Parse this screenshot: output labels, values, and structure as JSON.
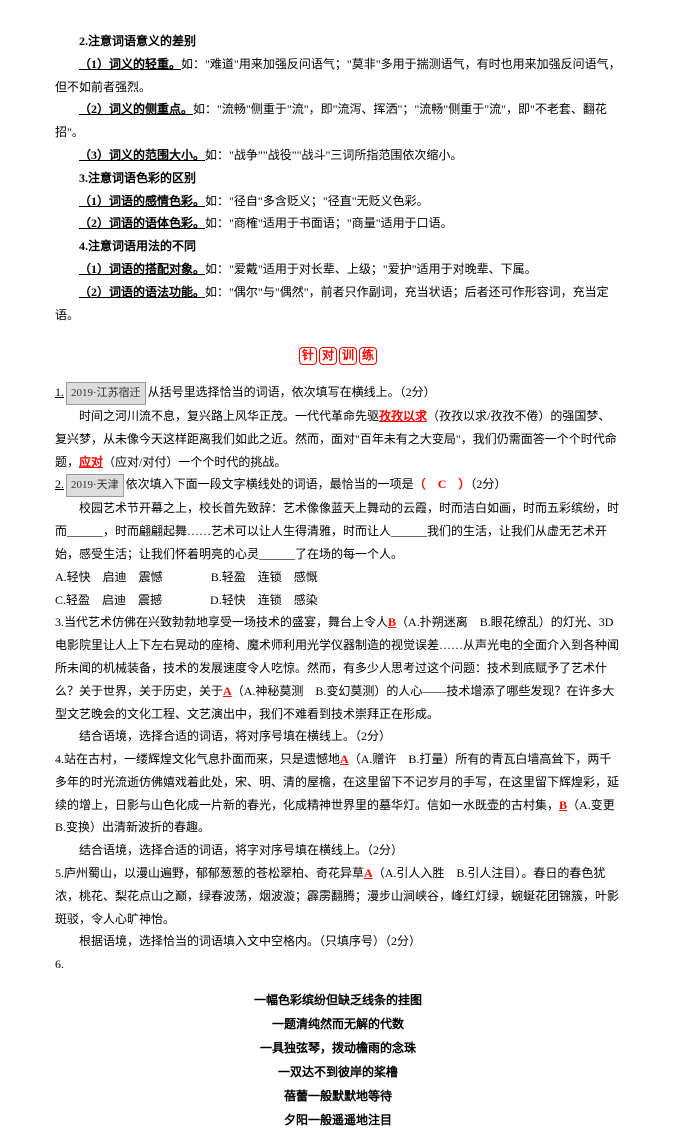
{
  "h2": "2.注意词语意义的差别",
  "p1_lead": "（1）词义的轻重。",
  "p1_rest": "如：\"难道\"用来加强反问语气；\"莫非\"多用于揣测语气，有时也用来加强反问语气，但不如前者强烈。",
  "p2_lead": "（2）词义的侧重点。",
  "p2_rest": "如：\"流畅\"侧重于\"流\"，即\"流泻、挥洒\"；\"流畅\"侧重于\"流\"，即\"不老套、翻花招\"。",
  "p3_lead": "（3）词义的范围大小。",
  "p3_rest": "如：\"战争\"\"战役\"\"战斗\"三词所指范围依次缩小。",
  "h3": "3.注意词语色彩的区别",
  "p4_lead": "（1）词语的感情色彩。",
  "p4_rest": "如：\"径自\"多含贬义；\"径直\"无贬义色彩。",
  "p5_lead": "（2）词语的语体色彩。",
  "p5_rest": "如：\"商榷\"适用于书面语；\"商量\"适用于口语。",
  "h4": "4.注意词语用法的不同",
  "p6_lead": "（1）词语的搭配对象。",
  "p6_rest": "如：\"爱戴\"适用于对长辈、上级；\"爱护\"适用于对晚辈、下属。",
  "p7_lead": "（2）词语的语法功能。",
  "p7_rest": "如：\"偶尔\"与\"偶然\"，前者只作副词，充当状语；后者还可作形容词，充当定语。",
  "practice": [
    "针",
    "对",
    "训",
    "练"
  ],
  "q1": {
    "num": "1.",
    "tag": "2019·江苏宿迁",
    "prompt": "从括号里选择恰当的词语，依次填写在横线上。（2分）",
    "body_a": "时间之河川流不息，复兴路上风华正茂。一代代革命先驱",
    "ans1": "孜孜以求",
    "body_b": "（孜孜以求/孜孜不倦）的强国梦、复兴梦，从未像今天这样距离我们如此之近。然而，面对\"百年未有之大变局\"，我们仍需面答一个个时代命题，",
    "ans2": "应对",
    "body_c": "（应对/对付）一个个时代的挑战。"
  },
  "q2": {
    "num": "2.",
    "tag": "2019·天津",
    "prompt": "依次填入下面一段文字横线处的词语，最恰当的一项是",
    "ans": "（　C　）",
    "score": "（2分）",
    "body": "校园艺术节开幕之上，校长首先致辞：艺术像像蓝天上舞动的云霞，时而洁白如画，时而五彩缤纷，时而______，时而翩翩起舞……艺术可以让人生得清雅，时而让人______我们的生活，让我们从虚无艺术开始，感受生活；让我们怀着明亮的心灵______了在场的每一个人。",
    "optA": "A.轻快　启迪　震憾",
    "optB": "B.轻盈　连锁　感慨",
    "optC": "C.轻盈　启迪　震撼",
    "optD": "D.轻快　连锁　感染"
  },
  "q3": {
    "pre": "3.当代艺术仿佛在兴致勃勃地享受一场技术的盛宴，舞台上令人",
    "ans1": "B",
    "mid1": "（A.扑朔迷离　B.眼花缭乱）的灯光、3D电影院里让人上下左右晃动的座椅、魔术师利用光学仪器制造的视觉误差……从声光电的全面介入到各种闻所未闻的机械装备，技术的发展速度令人吃惊。然而，有多少人思考过这个问题：技术到底赋予了艺术什么？关于世界，关于历史，关于",
    "ans2": "A",
    "mid2": "（A.神秘莫测　B.变幻莫测）的人心——技术增添了哪些发现？在许多大型文艺晚会的文化工程、文艺演出中，我们不难看到技术崇拜正在形成。",
    "sub": "结合语境，选择合适的词语，将对序号填在横线上。（2分）"
  },
  "q4": {
    "pre": "4.站在古村，一缕辉煌文化气息扑面而来，只是遗憾地",
    "ans1": "A",
    "mid1": "（A.赠许　B.打量）所有的青瓦白墙高耸下，两千多年的时光流逝仿佛嬉戏着此处，宋、明、清的屋檐，在这里留下不记岁月的手写，在这里留下辉煌彩，延续的增上，日影与山色化成一片新的春光，化成精神世界里的墓华灯。信如一水既壶的古村集，",
    "ans2": "B",
    "mid2": "（A.变更　B.变换）出清新波折的春趣。",
    "sub": "结合语境，选择合适的词语，将字对序号填在横线上。（2分）"
  },
  "q5": {
    "pre": "5.庐州蜀山，以漫山遍野，郁郁葱葱的苍松翠柏、奇花异草",
    "ans1": "A",
    "mid": "（A.引人入胜　B.引人注目）。春日的春色犹浓，桃花、梨花点山之巅，绿春波荡，烟波漩；霹雳翻腾；漫步山涧峡谷，峰红灯绿，蜿蜒花团锦簇，叶影斑驳，令人心旷神怡。",
    "sub": "根据语境，选择恰当的词语填入文中空格内。（只填序号）（2分）"
  },
  "q6": {
    "num": "6.",
    "poem": [
      "一幅色彩缤纷但缺乏线条的挂图",
      "一题清纯然而无解的代数",
      "一具独弦琴，拨动檐雨的念珠",
      "一双达不到彼岸的桨橹",
      "",
      "蓓蕾一般默默地等待",
      "夕阳一般遥遥地注目"
    ]
  }
}
